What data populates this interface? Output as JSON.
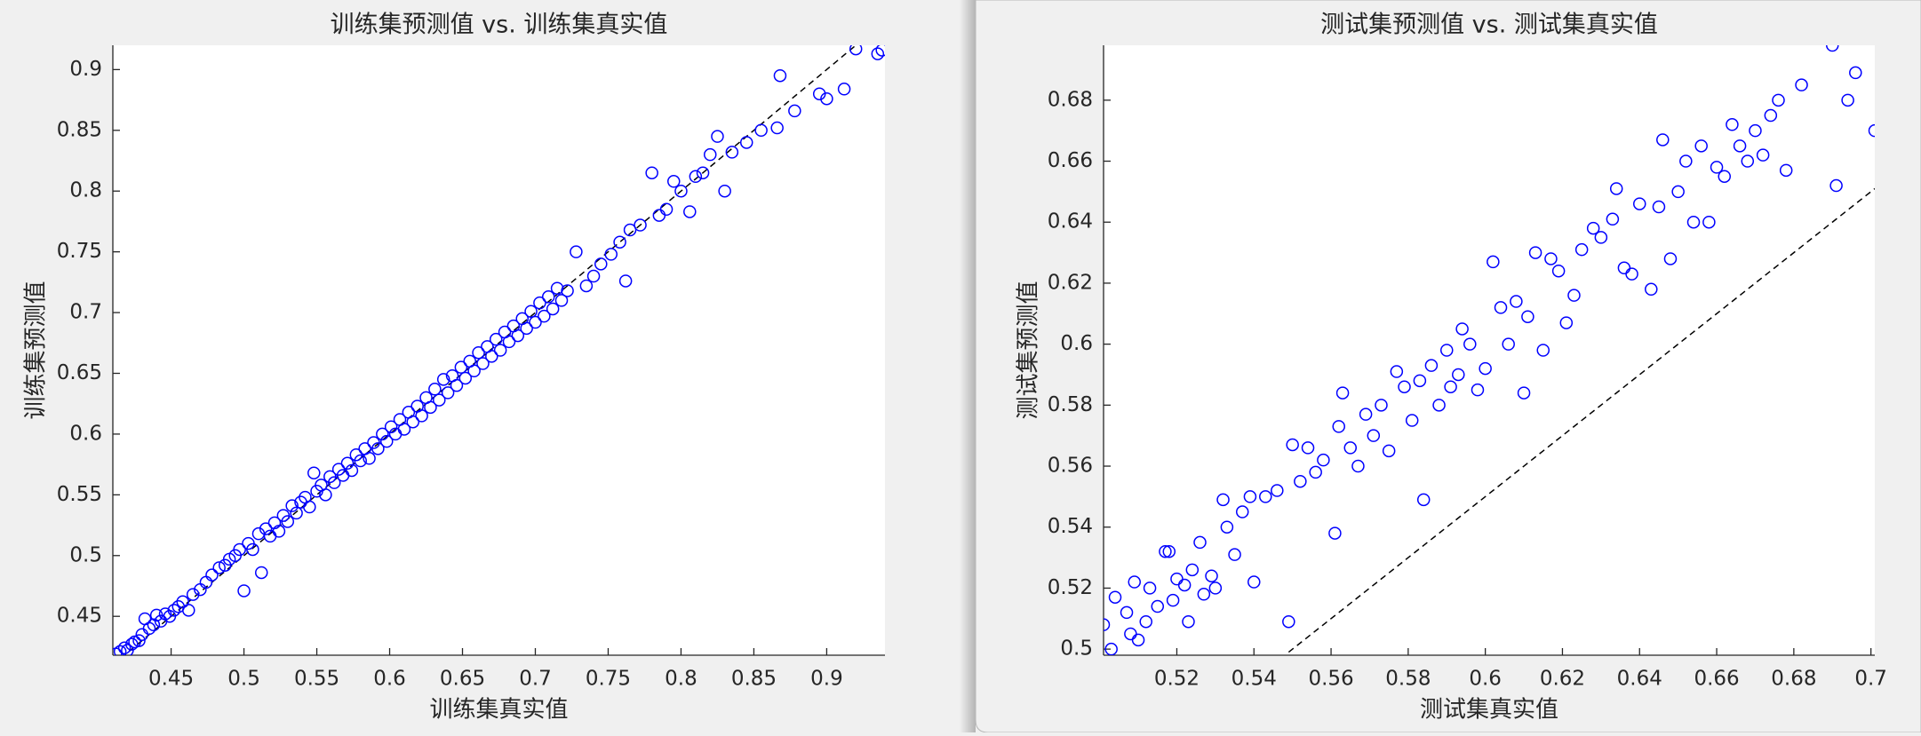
{
  "chart_data": [
    {
      "type": "scatter",
      "title": "训练集预测值 vs. 训练集真实值",
      "xlabel": "训练集真实值",
      "ylabel": "训练集预测值",
      "color": "#0000ff",
      "xlim": [
        0.41,
        0.94
      ],
      "ylim": [
        0.418,
        0.92
      ],
      "xticks": [
        0.45,
        0.5,
        0.55,
        0.6,
        0.65,
        0.7,
        0.75,
        0.8,
        0.85,
        0.9
      ],
      "yticks": [
        0.45,
        0.5,
        0.55,
        0.6,
        0.65,
        0.7,
        0.75,
        0.8,
        0.85,
        0.9
      ],
      "reference_line": {
        "x": [
          0.41,
          0.94
        ],
        "y": [
          0.41,
          0.94
        ]
      },
      "x": [
        0.412,
        0.415,
        0.418,
        0.42,
        0.423,
        0.425,
        0.428,
        0.43,
        0.432,
        0.435,
        0.438,
        0.44,
        0.443,
        0.446,
        0.449,
        0.452,
        0.455,
        0.458,
        0.462,
        0.465,
        0.47,
        0.474,
        0.478,
        0.483,
        0.487,
        0.49,
        0.494,
        0.497,
        0.5,
        0.503,
        0.506,
        0.51,
        0.512,
        0.515,
        0.518,
        0.521,
        0.524,
        0.527,
        0.53,
        0.533,
        0.536,
        0.539,
        0.542,
        0.545,
        0.548,
        0.55,
        0.553,
        0.556,
        0.559,
        0.562,
        0.565,
        0.568,
        0.571,
        0.574,
        0.577,
        0.58,
        0.583,
        0.586,
        0.589,
        0.592,
        0.595,
        0.598,
        0.601,
        0.604,
        0.607,
        0.61,
        0.613,
        0.616,
        0.619,
        0.622,
        0.625,
        0.628,
        0.631,
        0.634,
        0.637,
        0.64,
        0.643,
        0.646,
        0.649,
        0.652,
        0.655,
        0.658,
        0.661,
        0.664,
        0.667,
        0.67,
        0.673,
        0.676,
        0.679,
        0.682,
        0.685,
        0.688,
        0.691,
        0.694,
        0.697,
        0.7,
        0.703,
        0.706,
        0.709,
        0.712,
        0.715,
        0.718,
        0.722,
        0.728,
        0.735,
        0.74,
        0.745,
        0.752,
        0.758,
        0.762,
        0.765,
        0.772,
        0.78,
        0.785,
        0.79,
        0.795,
        0.8,
        0.806,
        0.81,
        0.815,
        0.82,
        0.825,
        0.83,
        0.835,
        0.845,
        0.855,
        0.866,
        0.868,
        0.878,
        0.895,
        0.9,
        0.912,
        0.92,
        0.935,
        0.938
      ],
      "y": [
        0.419,
        0.421,
        0.424,
        0.422,
        0.427,
        0.429,
        0.43,
        0.435,
        0.448,
        0.44,
        0.443,
        0.451,
        0.446,
        0.452,
        0.45,
        0.455,
        0.458,
        0.462,
        0.455,
        0.468,
        0.472,
        0.478,
        0.484,
        0.49,
        0.492,
        0.497,
        0.5,
        0.505,
        0.471,
        0.51,
        0.505,
        0.518,
        0.486,
        0.522,
        0.516,
        0.527,
        0.52,
        0.533,
        0.528,
        0.541,
        0.535,
        0.544,
        0.548,
        0.54,
        0.568,
        0.553,
        0.558,
        0.55,
        0.565,
        0.56,
        0.571,
        0.566,
        0.576,
        0.57,
        0.583,
        0.578,
        0.588,
        0.58,
        0.593,
        0.588,
        0.6,
        0.594,
        0.606,
        0.6,
        0.612,
        0.604,
        0.618,
        0.61,
        0.623,
        0.615,
        0.63,
        0.622,
        0.637,
        0.628,
        0.645,
        0.634,
        0.648,
        0.64,
        0.655,
        0.646,
        0.66,
        0.652,
        0.667,
        0.658,
        0.672,
        0.664,
        0.678,
        0.669,
        0.684,
        0.676,
        0.689,
        0.681,
        0.695,
        0.687,
        0.701,
        0.692,
        0.708,
        0.697,
        0.713,
        0.703,
        0.72,
        0.71,
        0.718,
        0.75,
        0.722,
        0.73,
        0.74,
        0.748,
        0.758,
        0.726,
        0.768,
        0.772,
        0.815,
        0.78,
        0.785,
        0.808,
        0.8,
        0.783,
        0.812,
        0.815,
        0.83,
        0.845,
        0.8,
        0.832,
        0.84,
        0.85,
        0.852,
        0.895,
        0.866,
        0.88,
        0.876,
        0.884,
        0.917,
        0.913,
        0.916
      ]
    },
    {
      "type": "scatter",
      "title": "测试集预测值 vs. 测试集真实值",
      "xlabel": "测试集真实值",
      "ylabel": "测试集预测值",
      "color": "#0000ff",
      "xlim": [
        0.501,
        0.701
      ],
      "ylim": [
        0.498,
        0.698
      ],
      "xticks": [
        0.52,
        0.54,
        0.56,
        0.58,
        0.6,
        0.62,
        0.64,
        0.66,
        0.68,
        0.7
      ],
      "yticks": [
        0.5,
        0.52,
        0.54,
        0.56,
        0.58,
        0.6,
        0.62,
        0.64,
        0.66,
        0.68
      ],
      "reference_line": {
        "x": [
          0.549,
          0.701
        ],
        "y": [
          0.499,
          0.651
        ]
      },
      "x": [
        0.501,
        0.503,
        0.504,
        0.507,
        0.508,
        0.509,
        0.51,
        0.512,
        0.513,
        0.515,
        0.517,
        0.518,
        0.519,
        0.52,
        0.522,
        0.523,
        0.524,
        0.526,
        0.527,
        0.529,
        0.53,
        0.532,
        0.533,
        0.535,
        0.537,
        0.539,
        0.54,
        0.543,
        0.546,
        0.549,
        0.55,
        0.552,
        0.554,
        0.556,
        0.558,
        0.561,
        0.562,
        0.563,
        0.565,
        0.567,
        0.569,
        0.571,
        0.573,
        0.575,
        0.577,
        0.579,
        0.581,
        0.583,
        0.584,
        0.586,
        0.588,
        0.59,
        0.591,
        0.593,
        0.594,
        0.596,
        0.598,
        0.6,
        0.602,
        0.604,
        0.606,
        0.608,
        0.61,
        0.611,
        0.613,
        0.615,
        0.617,
        0.619,
        0.621,
        0.623,
        0.625,
        0.628,
        0.63,
        0.633,
        0.634,
        0.636,
        0.638,
        0.64,
        0.643,
        0.645,
        0.646,
        0.648,
        0.65,
        0.652,
        0.654,
        0.656,
        0.658,
        0.66,
        0.662,
        0.664,
        0.666,
        0.668,
        0.67,
        0.672,
        0.674,
        0.676,
        0.678,
        0.682,
        0.69,
        0.691,
        0.694,
        0.696,
        0.701
      ],
      "y": [
        0.508,
        0.5,
        0.517,
        0.512,
        0.505,
        0.522,
        0.503,
        0.509,
        0.52,
        0.514,
        0.532,
        0.532,
        0.516,
        0.523,
        0.521,
        0.509,
        0.526,
        0.535,
        0.518,
        0.524,
        0.52,
        0.549,
        0.54,
        0.531,
        0.545,
        0.55,
        0.522,
        0.55,
        0.552,
        0.509,
        0.567,
        0.555,
        0.566,
        0.558,
        0.562,
        0.538,
        0.573,
        0.584,
        0.566,
        0.56,
        0.577,
        0.57,
        0.58,
        0.565,
        0.591,
        0.586,
        0.575,
        0.588,
        0.549,
        0.593,
        0.58,
        0.598,
        0.586,
        0.59,
        0.605,
        0.6,
        0.585,
        0.592,
        0.627,
        0.612,
        0.6,
        0.614,
        0.584,
        0.609,
        0.63,
        0.598,
        0.628,
        0.624,
        0.607,
        0.616,
        0.631,
        0.638,
        0.635,
        0.641,
        0.651,
        0.625,
        0.623,
        0.646,
        0.618,
        0.645,
        0.667,
        0.628,
        0.65,
        0.66,
        0.64,
        0.665,
        0.64,
        0.658,
        0.655,
        0.672,
        0.665,
        0.66,
        0.67,
        0.662,
        0.675,
        0.68,
        0.657,
        0.685,
        0.698,
        0.652,
        0.68,
        0.689,
        0.67
      ]
    }
  ]
}
